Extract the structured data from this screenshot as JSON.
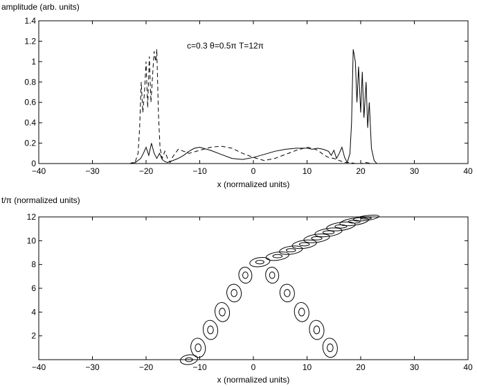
{
  "chart_data": [
    {
      "type": "line",
      "ylabel": "amplitude (arb. units)",
      "xlabel": "x (normalized units)",
      "annotation": "c=0.3   θ=0.5π  T=12π",
      "xlim": [
        -40,
        40
      ],
      "ylim": [
        0,
        1.4
      ],
      "xticks": [
        -40,
        -30,
        -20,
        -10,
        0,
        10,
        20,
        30,
        40
      ],
      "yticks": [
        0,
        0.2,
        0.4,
        0.6,
        0.8,
        1,
        1.2,
        1.4
      ],
      "xtick_labels": [
        "−40",
        "−30",
        "−20",
        "−10",
        "0",
        "10",
        "20",
        "30",
        "40"
      ],
      "ytick_labels": [
        "0",
        "0.2",
        "0.4",
        "0.6",
        "0.8",
        "1",
        "1.2",
        "1.4"
      ],
      "series": [
        {
          "style": "solid",
          "color": "#000000",
          "x": [
            -40,
            -23,
            -22,
            -21,
            -20.5,
            -20,
            -19.5,
            -19,
            -18.5,
            -18,
            -17.5,
            -17,
            -16.5,
            -16,
            -15,
            -14,
            -13,
            -12,
            -11,
            -10,
            -8,
            -6,
            -4,
            -2,
            0,
            2,
            4,
            6,
            8,
            10,
            11,
            12,
            13,
            14,
            14.5,
            15,
            15.5,
            16,
            16.5,
            17,
            17.5,
            18,
            18.3,
            18.6,
            19,
            19.3,
            19.6,
            20,
            20.3,
            20.6,
            21,
            21.3,
            21.6,
            22,
            22.5,
            23,
            40
          ],
          "y": [
            0,
            0,
            0.01,
            0.05,
            0.1,
            0.16,
            0.08,
            0.2,
            0.1,
            0.05,
            0.1,
            0.04,
            0.02,
            0.01,
            0.03,
            0.05,
            0.08,
            0.12,
            0.15,
            0.16,
            0.13,
            0.09,
            0.05,
            0.04,
            0.06,
            0.09,
            0.12,
            0.14,
            0.15,
            0.15,
            0.14,
            0.15,
            0.14,
            0.12,
            0.08,
            0.13,
            0.05,
            0.1,
            0.16,
            0.06,
            0.01,
            0.1,
            0.4,
            1.12,
            1.0,
            0.6,
            0.95,
            0.5,
            0.9,
            0.45,
            0.8,
            0.35,
            0.6,
            0.15,
            0.03,
            0,
            0
          ]
        },
        {
          "style": "dashed",
          "color": "#000000",
          "x": [
            -40,
            -23,
            -22,
            -21.5,
            -21.2,
            -20.9,
            -20.6,
            -20.3,
            -20,
            -19.7,
            -19.4,
            -19.1,
            -18.8,
            -18.5,
            -18.2,
            -18,
            -17.7,
            -17.4,
            -17,
            -16.5,
            -16,
            -15.5,
            -15,
            -14,
            -13,
            -12,
            -10,
            -8,
            -6,
            -4,
            -2,
            0,
            2,
            4,
            6,
            8,
            10,
            11,
            12,
            13,
            14,
            15,
            16,
            17,
            18,
            19,
            20,
            21,
            22,
            23,
            40
          ],
          "y": [
            0,
            0,
            0.02,
            0.1,
            0.35,
            0.8,
            0.5,
            0.7,
            1.0,
            0.55,
            1.05,
            0.6,
            0.85,
            1.1,
            1.0,
            1.12,
            0.5,
            0.15,
            0.05,
            0.12,
            0.05,
            0.01,
            0.07,
            0.14,
            0.12,
            0.1,
            0.13,
            0.16,
            0.17,
            0.15,
            0.1,
            0.06,
            0.03,
            0.05,
            0.09,
            0.13,
            0.16,
            0.15,
            0.13,
            0.09,
            0.06,
            0.05,
            0.03,
            0.01,
            0.01,
            0,
            0,
            0.01,
            0,
            0,
            0
          ]
        }
      ]
    },
    {
      "type": "contour",
      "ylabel": "t/π (normalized units)",
      "xlabel": "x (normalized units)",
      "xlim": [
        -40,
        40
      ],
      "ylim": [
        0,
        12
      ],
      "xticks": [
        -40,
        -30,
        -20,
        -10,
        0,
        10,
        20,
        30,
        40
      ],
      "yticks": [
        2,
        4,
        6,
        8,
        10,
        12
      ],
      "xtick_labels": [
        "−40",
        "−30",
        "−20",
        "−10",
        "0",
        "10",
        "20",
        "30",
        "40"
      ],
      "ytick_labels": [
        "2",
        "4",
        "6",
        "8",
        "10",
        "12"
      ],
      "left_branch": [
        {
          "x": -12,
          "y": 0,
          "rx": 1.2,
          "ry": 0.3
        },
        {
          "x": -10.3,
          "y": 1.0,
          "rx": 1.0,
          "ry": 0.6
        },
        {
          "x": -8.0,
          "y": 2.5,
          "rx": 1.0,
          "ry": 0.6
        },
        {
          "x": -5.8,
          "y": 4.0,
          "rx": 1.0,
          "ry": 0.6
        },
        {
          "x": -3.6,
          "y": 5.6,
          "rx": 1.0,
          "ry": 0.55
        },
        {
          "x": -1.5,
          "y": 7.1,
          "rx": 0.9,
          "ry": 0.5
        }
      ],
      "right_branch": [
        {
          "x": 3.5,
          "y": 7.1,
          "rx": 0.9,
          "ry": 0.5
        },
        {
          "x": 6.3,
          "y": 5.6,
          "rx": 1.0,
          "ry": 0.55
        },
        {
          "x": 9.0,
          "y": 4.0,
          "rx": 1.0,
          "ry": 0.6
        },
        {
          "x": 11.8,
          "y": 2.5,
          "rx": 1.0,
          "ry": 0.6
        },
        {
          "x": 14.3,
          "y": 1.0,
          "rx": 1.0,
          "ry": 0.6
        }
      ],
      "merged_branch": [
        {
          "x": 1.2,
          "y": 8.2,
          "rx": 1.4,
          "ry": 0.28
        },
        {
          "x": 4.5,
          "y": 8.7,
          "rx": 1.6,
          "ry": 0.25
        },
        {
          "x": 7.0,
          "y": 9.2,
          "rx": 1.6,
          "ry": 0.25
        },
        {
          "x": 9.5,
          "y": 9.7,
          "rx": 1.7,
          "ry": 0.25
        },
        {
          "x": 11.8,
          "y": 10.2,
          "rx": 1.8,
          "ry": 0.25
        },
        {
          "x": 14.0,
          "y": 10.7,
          "rx": 1.9,
          "ry": 0.25
        },
        {
          "x": 16.3,
          "y": 11.2,
          "rx": 2.0,
          "ry": 0.25
        },
        {
          "x": 18.8,
          "y": 11.6,
          "rx": 2.0,
          "ry": 0.22
        },
        {
          "x": 21.0,
          "y": 11.9,
          "rx": 1.8,
          "ry": 0.15
        }
      ]
    }
  ]
}
